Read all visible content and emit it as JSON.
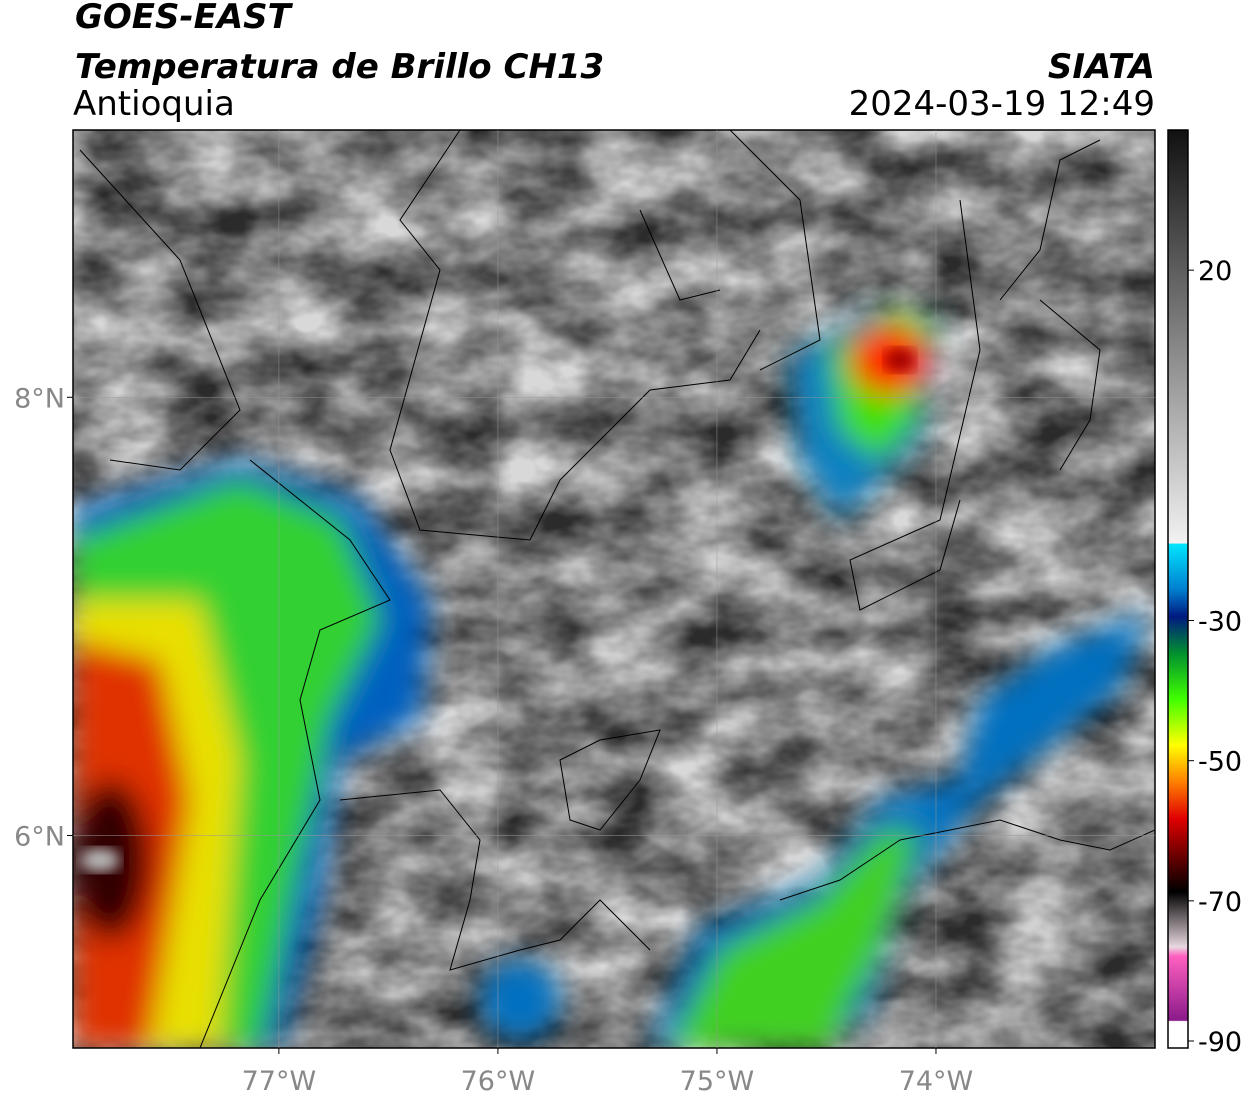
{
  "header": {
    "satellite": "GOES-EAST",
    "product": "Temperatura de Brillo CH13",
    "region": "Antioquia",
    "source": "SIATA",
    "datetime": "2024-03-19 12:49"
  },
  "map": {
    "xlim": [
      -77.94,
      -73.0
    ],
    "ylim": [
      5.03,
      9.22
    ],
    "xticks": [
      {
        "value": -77,
        "label": "77°W"
      },
      {
        "value": -76,
        "label": "76°W"
      },
      {
        "value": -75,
        "label": "75°W"
      },
      {
        "value": -74,
        "label": "74°W"
      }
    ],
    "yticks": [
      {
        "value": 6,
        "label": "6°N"
      },
      {
        "value": 8,
        "label": "8°N"
      }
    ],
    "grid": true
  },
  "colorbar": {
    "lim": [
      -91,
      40
    ],
    "ticks": [
      20,
      -30,
      -50,
      -70,
      -90
    ]
  }
}
